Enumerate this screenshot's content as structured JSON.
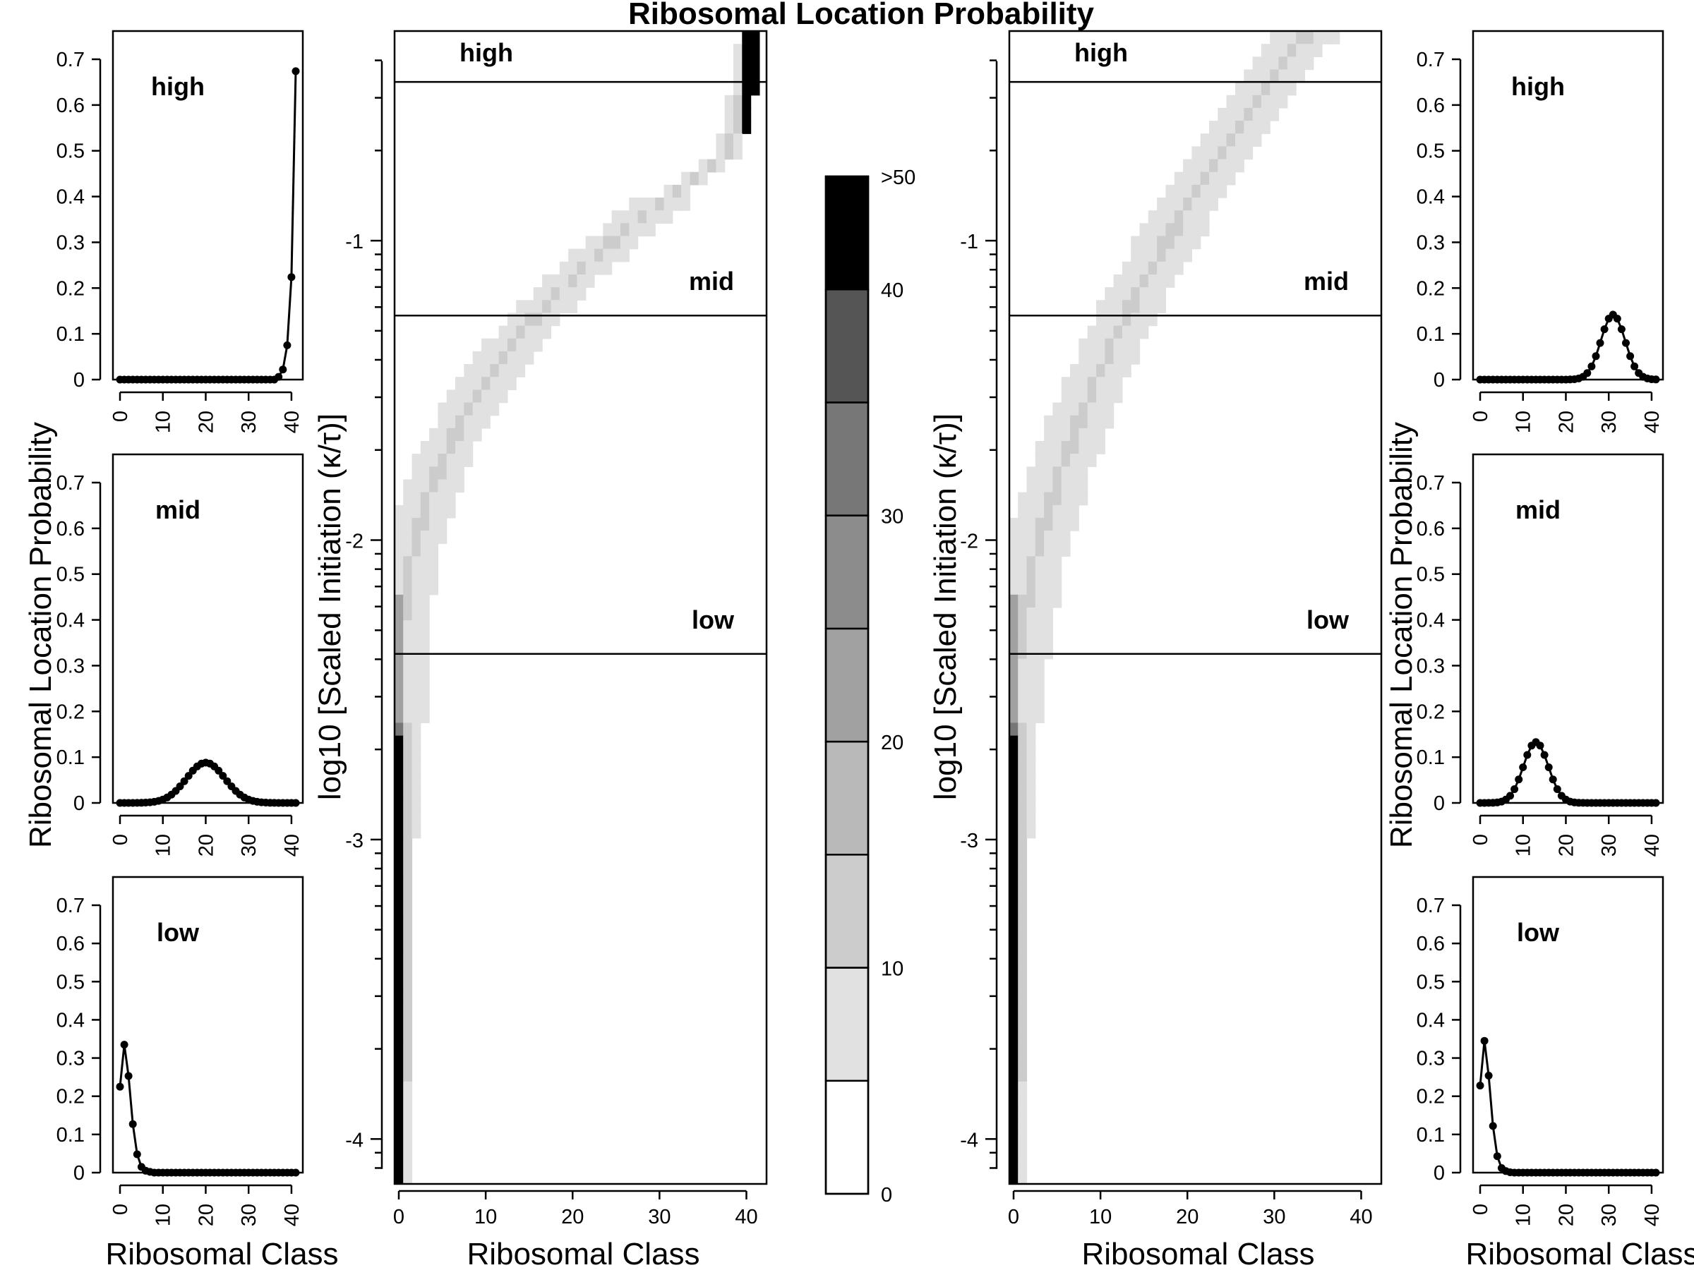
{
  "title": "Ribosomal Location Probability",
  "colors": {
    "ink": "#000000",
    "background": "#ffffff"
  },
  "chart_data": [
    {
      "id": "left-high",
      "type": "line",
      "label": "high",
      "xlabel": "",
      "ylabel": "",
      "xlim": [
        0,
        41
      ],
      "ylim": [
        0,
        0.7
      ],
      "xticks": [
        "0",
        "10",
        "20",
        "30",
        "40"
      ],
      "yticks": [
        "0",
        "0.1",
        "0.2",
        "0.3",
        "0.4",
        "0.5",
        "0.6",
        "0.7"
      ],
      "profile": {
        "kind": "tail",
        "peak": 41,
        "values": [
          0.674,
          0.224,
          0.075,
          0.022,
          0.006
        ]
      }
    },
    {
      "id": "left-mid",
      "type": "line",
      "label": "mid",
      "xlabel": "",
      "ylabel": "Ribosomal Location Probability",
      "xlim": [
        0,
        41
      ],
      "ylim": [
        0,
        0.7
      ],
      "xticks": [
        "0",
        "10",
        "20",
        "30",
        "40"
      ],
      "yticks": [
        "0",
        "0.1",
        "0.2",
        "0.3",
        "0.4",
        "0.5",
        "0.6",
        "0.7"
      ],
      "profile": {
        "kind": "gauss",
        "mean": 20,
        "sd": 4.5,
        "peak": 0.088
      }
    },
    {
      "id": "left-low",
      "type": "line",
      "label": "low",
      "xlabel": "Ribosomal Class",
      "ylabel": "",
      "xlim": [
        0,
        41
      ],
      "ylim": [
        0,
        0.7
      ],
      "xticks": [
        "0",
        "10",
        "20",
        "30",
        "40"
      ],
      "yticks": [
        "0",
        "0.1",
        "0.2",
        "0.3",
        "0.4",
        "0.5",
        "0.6",
        "0.7"
      ],
      "values": [
        0.225,
        0.335,
        0.253,
        0.127,
        0.048,
        0.015,
        0.005,
        0.002
      ]
    },
    {
      "id": "heat-left",
      "type": "heatmap",
      "xlabel": "Ribosomal Class",
      "ylabel": "log10 [Scaled Initiation (κ/τ)]",
      "xlim": [
        0,
        41
      ],
      "ylim": [
        -4.15,
        -0.3
      ],
      "xticks": [
        "0",
        "10",
        "20",
        "30",
        "40"
      ],
      "yticks": [
        "-1",
        "-2",
        "-3",
        "-4"
      ],
      "thresholds": [
        {
          "label": "high",
          "y": -0.47
        },
        {
          "label": "mid",
          "y": -1.25
        },
        {
          "label": "low",
          "y": -2.38
        }
      ],
      "ridge": {
        "y_top": -0.3,
        "y_bottom": -2.6,
        "x_at_top": 41,
        "x_at_bottom": 0,
        "shape": "sigmoid"
      }
    },
    {
      "id": "colorbar",
      "type": "colorbar",
      "ticks": [
        "0",
        "10",
        "20",
        "30",
        "40",
        ">50"
      ],
      "levels": [
        "#ffffff",
        "#e1e1e1",
        "#cccccc",
        "#b9b9b9",
        "#a1a1a1",
        "#8c8c8c",
        "#777777",
        "#555555",
        "#000000"
      ]
    },
    {
      "id": "heat-right",
      "type": "heatmap",
      "xlabel": "Ribosomal Class",
      "ylabel": "log10 [Scaled Initiation (κ/τ)]",
      "xlim": [
        0,
        41
      ],
      "ylim": [
        -4.15,
        -0.3
      ],
      "xticks": [
        "0",
        "10",
        "20",
        "30",
        "40"
      ],
      "yticks": [
        "-1",
        "-2",
        "-3",
        "-4"
      ],
      "thresholds": [
        {
          "label": "high",
          "y": -0.47
        },
        {
          "label": "mid",
          "y": -1.25
        },
        {
          "label": "low",
          "y": -2.38
        }
      ],
      "ridge": {
        "y_top": -0.3,
        "y_bottom": -2.6,
        "x_at_top": 34,
        "x_at_bottom": 0,
        "shape": "log"
      }
    },
    {
      "id": "right-high",
      "type": "line",
      "label": "high",
      "xlabel": "",
      "ylabel": "",
      "xlim": [
        0,
        41
      ],
      "ylim": [
        0,
        0.7
      ],
      "xticks": [
        "0",
        "10",
        "20",
        "30",
        "40"
      ],
      "yticks": [
        "0",
        "0.1",
        "0.2",
        "0.3",
        "0.4",
        "0.5",
        "0.6",
        "0.7"
      ],
      "profile": {
        "kind": "gauss",
        "mean": 31,
        "sd": 2.8,
        "peak": 0.142
      }
    },
    {
      "id": "right-mid",
      "type": "line",
      "label": "mid",
      "xlabel": "",
      "ylabel": "Ribosomal Location Probability",
      "xlim": [
        0,
        41
      ],
      "ylim": [
        0,
        0.7
      ],
      "xticks": [
        "0",
        "10",
        "20",
        "30",
        "40"
      ],
      "yticks": [
        "0",
        "0.1",
        "0.2",
        "0.3",
        "0.4",
        "0.5",
        "0.6",
        "0.7"
      ],
      "profile": {
        "kind": "gauss",
        "mean": 13,
        "sd": 2.9,
        "peak": 0.133
      }
    },
    {
      "id": "right-low",
      "type": "line",
      "label": "low",
      "xlabel": "Ribosomal Class",
      "ylabel": "",
      "xlim": [
        0,
        41
      ],
      "ylim": [
        0,
        0.7
      ],
      "xticks": [
        "0",
        "10",
        "20",
        "30",
        "40"
      ],
      "yticks": [
        "0",
        "0.1",
        "0.2",
        "0.3",
        "0.4",
        "0.5",
        "0.6",
        "0.7"
      ],
      "values": [
        0.228,
        0.345,
        0.254,
        0.122,
        0.043,
        0.012,
        0.004,
        0.001
      ]
    }
  ]
}
